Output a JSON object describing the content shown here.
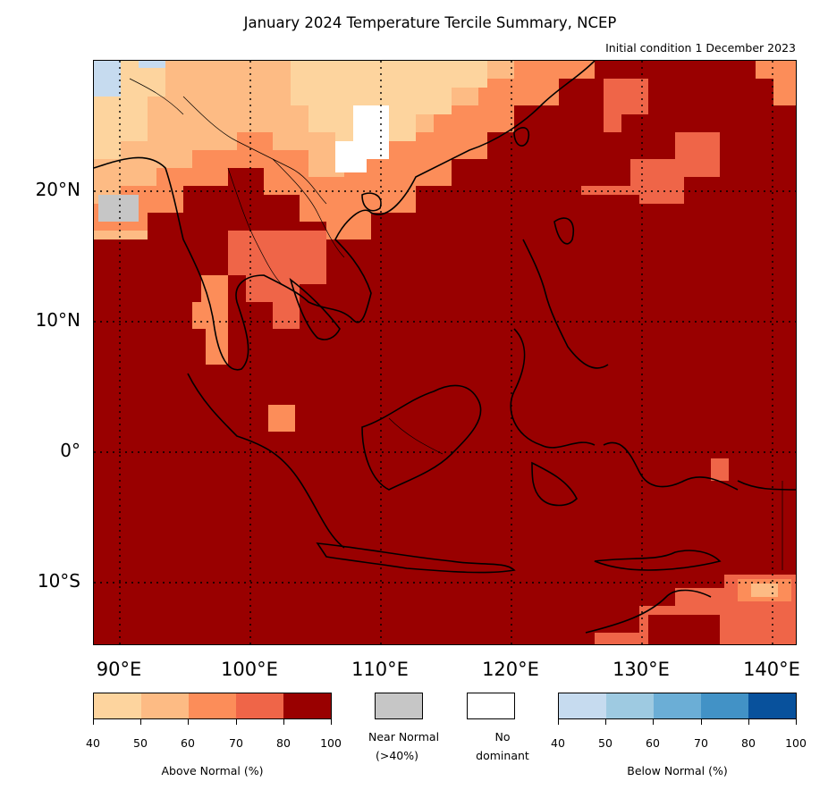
{
  "title": "January 2024 Temperature Tercile Summary, NCEP",
  "subtitle": "Initial condition 1 December 2023",
  "lat_labels": [
    "20°N",
    "10°N",
    "0°",
    "10°S"
  ],
  "lon_labels": [
    "90°E",
    "100°E",
    "110°E",
    "120°E",
    "130°E",
    "140°E"
  ],
  "above_normal": {
    "label": "Above Normal (%)",
    "ticks": [
      "40",
      "50",
      "60",
      "70",
      "80",
      "100"
    ],
    "colors": [
      "#fdd49e",
      "#fdbb84",
      "#fc8d59",
      "#ef6548",
      "#990000"
    ]
  },
  "near_normal": {
    "label_line1": "Near Normal",
    "label_line2": "(>40%)",
    "color": "#c6c6c6"
  },
  "no_dominant": {
    "label_line1": "No",
    "label_line2": "dominant",
    "color": "#ffffff"
  },
  "below_normal": {
    "label": "Below Normal (%)",
    "ticks": [
      "40",
      "50",
      "60",
      "70",
      "80",
      "100"
    ],
    "colors": [
      "#c6dbef",
      "#9ecae1",
      "#6baed6",
      "#4292c6",
      "#08519c"
    ]
  }
}
